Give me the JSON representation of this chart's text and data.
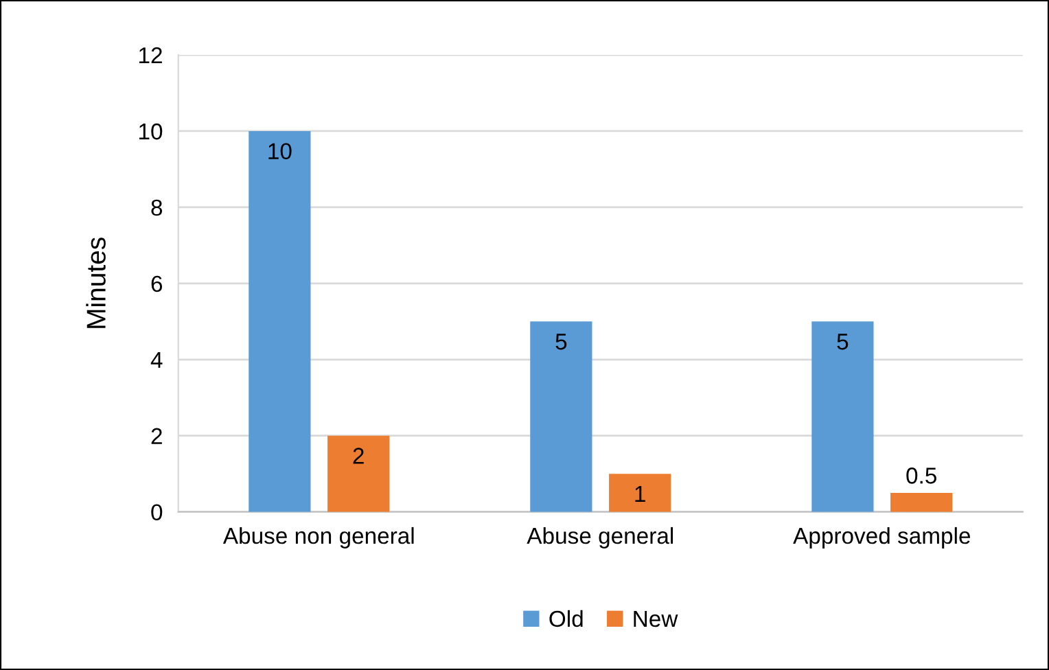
{
  "chart_data": {
    "type": "bar",
    "ylabel": "Minutes",
    "categories": [
      "Abuse non general",
      "Abuse general",
      "Approved sample"
    ],
    "series": [
      {
        "name": "Old",
        "color": "#5b9bd5",
        "values": [
          10,
          5,
          5
        ]
      },
      {
        "name": "New",
        "color": "#ed7d31",
        "values": [
          2,
          1,
          0.5
        ]
      }
    ],
    "ylim": [
      0,
      12
    ],
    "yticks": [
      0,
      2,
      4,
      6,
      8,
      10,
      12
    ],
    "grid": "y",
    "legend": "bottom",
    "data_labels": true
  }
}
